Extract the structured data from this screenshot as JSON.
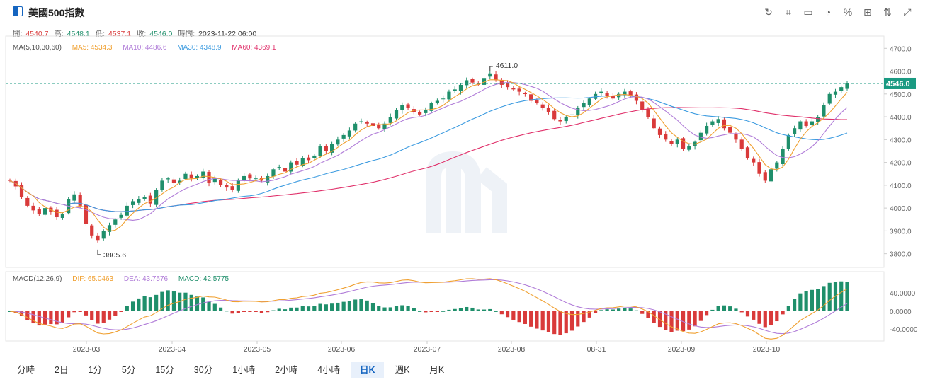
{
  "header": {
    "title": "美國500指數"
  },
  "toolbar": {
    "icons": [
      "refresh-icon",
      "draw-icon",
      "image-icon",
      "pie-icon",
      "percent-icon",
      "layout-icon",
      "sort-icon",
      "fullscreen-icon"
    ],
    "glyphs": [
      "↻",
      "⌗",
      "▭",
      "◔",
      "%",
      "⊞",
      "⇅",
      "⤢"
    ]
  },
  "ohlc": {
    "open_label": "開:",
    "open": "4540.7",
    "high_label": "高:",
    "high": "4548.1",
    "low_label": "低:",
    "low": "4537.1",
    "close_label": "收:",
    "close": "4546.0",
    "time_label": "時間:",
    "time": "2023-11-22 06:00"
  },
  "ma": {
    "title": "MA(5,10,30,60)",
    "ma5": "MA5: 4534.3",
    "ma10": "MA10: 4486.6",
    "ma30": "MA30: 4348.9",
    "ma60": "MA60: 4369.1"
  },
  "macd_legend": {
    "title": "MACD(12,26,9)",
    "dif": "DIF: 65.0463",
    "dea": "DEA: 43.7576",
    "macd": "MACD: 42.5775"
  },
  "colors": {
    "up": "#1f8f6b",
    "down": "#d93a3a",
    "ma5": "#f0a030",
    "ma10": "#b07cd8",
    "ma30": "#3c9be0",
    "ma60": "#e0306a",
    "last": "#1a9a82"
  },
  "annotations": {
    "high_marker": "4611.0",
    "low_marker": "3805.6",
    "last_price": "4546.0"
  },
  "chart_data": [
    {
      "type": "candlestick",
      "title": "美國500指數",
      "y_ticks": [
        "4700.0",
        "4600.0",
        "4500.0",
        "4400.0",
        "4300.0",
        "4200.0",
        "4100.0",
        "4000.0",
        "3900.0",
        "3800.0"
      ],
      "ylim": [
        3740,
        4735
      ],
      "x_ticks": [
        "2023-03",
        "2023-04",
        "2023-05",
        "2023-06",
        "2023-07",
        "2023-08",
        "08-31",
        "2023-09",
        "2023-10"
      ],
      "series_close_approx": [
        4120,
        4095,
        4050,
        4010,
        3990,
        3975,
        4000,
        3985,
        3960,
        3975,
        4040,
        4060,
        4010,
        3930,
        3880,
        3860,
        3900,
        3925,
        3950,
        3970,
        4010,
        4030,
        4040,
        4050,
        4020,
        4080,
        4120,
        4130,
        4110,
        4120,
        4150,
        4130,
        4140,
        4160,
        4110,
        4130,
        4100,
        4090,
        4080,
        4120,
        4140,
        4130,
        4130,
        4120,
        4140,
        4170,
        4180,
        4160,
        4200,
        4190,
        4220,
        4210,
        4230,
        4270,
        4250,
        4280,
        4300,
        4320,
        4340,
        4370,
        4380,
        4370,
        4360,
        4350,
        4370,
        4400,
        4430,
        4450,
        4440,
        4420,
        4410,
        4430,
        4460,
        4470,
        4480,
        4510,
        4520,
        4540,
        4560,
        4550,
        4540,
        4570,
        4590,
        4560,
        4540,
        4530,
        4520,
        4510,
        4500,
        4470,
        4460,
        4440,
        4420,
        4390,
        4380,
        4400,
        4410,
        4440,
        4460,
        4480,
        4500,
        4510,
        4490,
        4480,
        4500,
        4510,
        4490,
        4470,
        4430,
        4400,
        4350,
        4320,
        4300,
        4280,
        4300,
        4260,
        4270,
        4290,
        4330,
        4360,
        4380,
        4390,
        4350,
        4330,
        4300,
        4260,
        4220,
        4200,
        4150,
        4120,
        4170,
        4200,
        4260,
        4320,
        4350,
        4380,
        4360,
        4380,
        4400,
        4450,
        4500,
        4510,
        4530,
        4546
      ],
      "ma_last": {
        "MA5": 4534.3,
        "MA10": 4486.6,
        "MA30": 4348.9,
        "MA60": 4369.1
      },
      "high_point": 4611.0,
      "low_point": 3805.6,
      "last_price": 4546.0
    },
    {
      "type": "bar",
      "title": "MACD(12,26,9)",
      "y_ticks": [
        "40.0000",
        "0.0000",
        "-40.0000"
      ],
      "last": {
        "DIF": 65.0463,
        "DEA": 43.7576,
        "MACD": 42.5775
      }
    }
  ],
  "tabs": [
    "分時",
    "2日",
    "1分",
    "5分",
    "15分",
    "30分",
    "1小時",
    "2小時",
    "4小時",
    "日K",
    "週K",
    "月K"
  ],
  "active_tab": "日K"
}
